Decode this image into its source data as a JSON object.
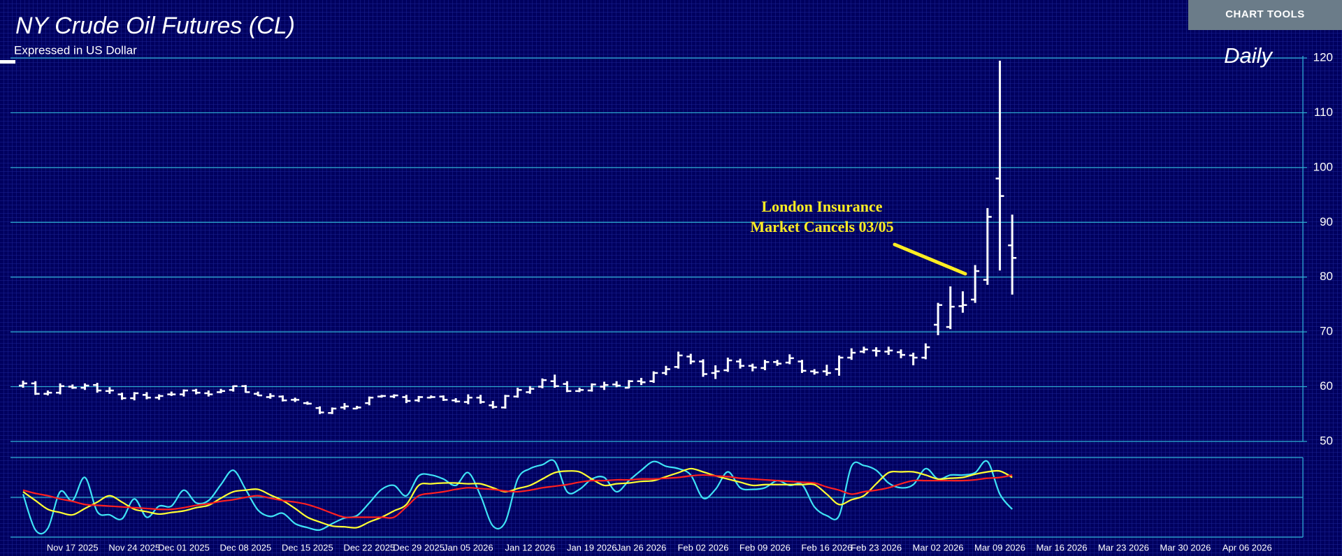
{
  "ui": {
    "chart_tools": "CHART TOOLS"
  },
  "chart_data": [
    {
      "type": "ohlc",
      "title": "NY Crude Oil Futures (CL)",
      "subtitle": "Expressed in US Dollar",
      "period": "Daily",
      "annotations": [
        "London Insurance",
        "Market Cancels 03/05"
      ],
      "color": "#ffffff",
      "grid": true,
      "grid_color": "#2fb3d6",
      "ylim": [
        50,
        120
      ],
      "yticks": [
        50,
        60,
        70,
        80,
        90,
        100,
        110,
        120
      ],
      "categories": [
        null,
        null,
        null,
        null,
        "Nov 17 2025",
        null,
        null,
        null,
        null,
        "Nov 24 2025",
        null,
        null,
        null,
        "Dec 01 2025",
        null,
        null,
        null,
        null,
        "Dec 08 2025",
        null,
        null,
        null,
        null,
        "Dec 15 2025",
        null,
        null,
        null,
        null,
        "Dec 22 2025",
        null,
        null,
        null,
        "Dec 29 2025",
        null,
        null,
        null,
        "Jan 05 2026",
        null,
        null,
        null,
        null,
        "Jan 12 2026",
        null,
        null,
        null,
        null,
        "Jan 19 2026",
        null,
        null,
        null,
        "Jan 26 2026",
        null,
        null,
        null,
        null,
        "Feb 02 2026",
        null,
        null,
        null,
        null,
        "Feb 09 2026",
        null,
        null,
        null,
        null,
        "Feb 16 2026",
        null,
        null,
        null,
        "Feb 23 2026",
        null,
        null,
        null,
        null,
        "Mar 02 2026",
        null,
        null,
        null,
        null,
        "Mar 09 2026",
        null,
        null,
        null,
        null,
        "Mar 16 2026",
        null,
        null,
        null,
        null,
        "Mar 23 2026",
        null,
        null,
        null,
        null,
        "Mar 30 2026",
        null,
        null,
        null,
        null,
        "Apr 06 2026",
        null,
        null,
        null,
        null
      ],
      "open": [
        60.2,
        60.6,
        58.7,
        58.9,
        60.0,
        59.8,
        60.3,
        59.2,
        58.6,
        57.9,
        58.5,
        58.0,
        58.6,
        58.6,
        59.3,
        58.8,
        59.0,
        59.4,
        60.1,
        58.7,
        58.1,
        58.2,
        57.6,
        57.0,
        56.1,
        55.2,
        56.2,
        56.0,
        57.0,
        58.2,
        58.2,
        58.1,
        57.5,
        58.0,
        58.2,
        57.5,
        57.2,
        58.0,
        56.6,
        56.2,
        58.2,
        59.0,
        60.0,
        61.0,
        60.5,
        59.2,
        59.3,
        60.0,
        60.4,
        59.8,
        61.0,
        61.0,
        62.5,
        63.6,
        65.5,
        64.6,
        62.5,
        63.0,
        64.6,
        63.8,
        63.4,
        64.5,
        64.4,
        64.6,
        62.8,
        62.8,
        63.2,
        65.3,
        66.4,
        66.6,
        66.4,
        66.3,
        65.7,
        65.3,
        71.3,
        70.9,
        74.7,
        75.9,
        79.5,
        98.0,
        85.8,
        null,
        null,
        null,
        null,
        null,
        null,
        null,
        null,
        null,
        null,
        null,
        null,
        null,
        null,
        null,
        null,
        null,
        null,
        null,
        null,
        null,
        null,
        null
      ],
      "high": [
        61.1,
        61.0,
        59.3,
        60.6,
        60.4,
        60.6,
        60.7,
        59.9,
        58.9,
        59.0,
        59.0,
        58.6,
        59.1,
        59.5,
        59.6,
        59.3,
        59.6,
        60.2,
        60.3,
        59.1,
        58.8,
        58.4,
        58.0,
        57.3,
        56.4,
        56.2,
        57.0,
        56.5,
        58.2,
        58.5,
        58.6,
        58.5,
        58.3,
        58.4,
        58.4,
        57.9,
        58.6,
        58.5,
        57.4,
        58.5,
        59.8,
        60.1,
        61.5,
        62.2,
        61.0,
        59.8,
        60.6,
        60.9,
        61.0,
        61.2,
        61.6,
        62.8,
        63.8,
        66.4,
        66.0,
        65.0,
        63.9,
        65.3,
        65.1,
        64.2,
        64.9,
        64.9,
        65.9,
        64.9,
        63.2,
        64.0,
        65.7,
        67.0,
        67.3,
        67.2,
        67.3,
        66.8,
        66.2,
        67.9,
        75.3,
        78.3,
        77.4,
        82.2,
        92.6,
        119.5,
        91.4,
        null,
        null,
        null,
        null,
        null,
        null,
        null,
        null,
        null,
        null,
        null,
        null,
        null,
        null,
        null,
        null,
        null,
        null,
        null,
        null,
        null,
        null,
        null
      ],
      "low": [
        59.8,
        58.5,
        58.4,
        58.6,
        59.6,
        59.4,
        58.9,
        58.7,
        57.6,
        57.5,
        57.7,
        57.6,
        58.3,
        58.2,
        58.6,
        58.2,
        58.8,
        59.1,
        58.9,
        58.3,
        57.8,
        57.3,
        57.2,
        56.7,
        55.0,
        55.0,
        55.8,
        55.9,
        56.6,
        58.0,
        57.9,
        57.0,
        57.2,
        57.9,
        57.4,
        57.1,
        56.8,
        56.9,
        56.0,
        56.0,
        58.0,
        58.7,
        59.7,
        59.8,
        59.0,
        59.0,
        59.1,
        59.4,
        59.9,
        59.7,
        60.3,
        60.7,
        62.1,
        63.3,
        64.1,
        61.8,
        61.4,
        62.7,
        63.3,
        62.8,
        63.0,
        63.8,
        64.1,
        62.5,
        62.2,
        62.0,
        62.0,
        64.9,
        66.1,
        65.5,
        65.8,
        65.2,
        63.9,
        65.0,
        69.4,
        70.5,
        73.5,
        75.3,
        78.6,
        81.2,
        76.8,
        null,
        null,
        null,
        null,
        null,
        null,
        null,
        null,
        null,
        null,
        null,
        null,
        null,
        null,
        null,
        null,
        null,
        null,
        null,
        null,
        null,
        null,
        null
      ],
      "close": [
        60.6,
        58.7,
        58.9,
        60.1,
        59.8,
        60.2,
        59.3,
        59.3,
        57.9,
        58.8,
        58.0,
        58.3,
        58.6,
        59.3,
        58.9,
        58.6,
        59.2,
        60.1,
        59.0,
        58.4,
        58.3,
        57.5,
        57.6,
        56.9,
        55.3,
        56.0,
        56.4,
        56.2,
        58.0,
        58.3,
        58.4,
        57.4,
        58.1,
        58.1,
        57.6,
        57.3,
        58.0,
        57.2,
        56.3,
        58.3,
        59.4,
        59.6,
        61.2,
        60.1,
        59.2,
        59.4,
        60.4,
        60.3,
        60.2,
        61.0,
        60.8,
        62.5,
        63.2,
        65.7,
        64.6,
        62.3,
        62.8,
        64.8,
        63.8,
        63.5,
        64.5,
        64.2,
        65.2,
        62.9,
        62.6,
        62.5,
        65.3,
        66.2,
        66.8,
        66.5,
        66.6,
        65.8,
        65.3,
        67.2,
        74.9,
        74.6,
        74.9,
        81.1,
        91.0,
        94.8,
        83.5,
        null,
        null,
        null,
        null,
        null,
        null,
        null,
        null,
        null,
        null,
        null,
        null,
        null,
        null,
        null,
        null,
        null,
        null,
        null,
        null,
        null,
        null,
        null
      ]
    },
    {
      "type": "line",
      "ylim": [
        0,
        100
      ],
      "grid_color": "#2fb3d6",
      "series": [
        {
          "color": "#3fe3f5",
          "values": [
            54,
            9,
            11,
            57,
            46,
            75,
            32,
            28,
            23,
            48,
            25,
            39,
            39,
            59,
            43,
            46,
            66,
            84,
            60,
            34,
            26,
            30,
            17,
            12,
            9,
            17,
            24,
            27,
            43,
            60,
            65,
            52,
            77,
            78,
            73,
            65,
            81,
            52,
            14,
            19,
            73,
            86,
            91,
            95,
            57,
            60,
            73,
            75,
            57,
            71,
            84,
            95,
            89,
            86,
            78,
            49,
            60,
            82,
            62,
            60,
            62,
            71,
            65,
            66,
            38,
            27,
            27,
            89,
            90,
            84,
            68,
            62,
            66,
            86,
            73,
            78,
            78,
            81,
            95,
            54,
            35,
            null,
            null,
            null,
            null,
            null,
            null,
            null,
            null,
            null,
            null,
            null,
            null,
            null,
            null,
            null,
            null,
            null,
            null,
            null,
            null,
            null,
            null,
            null
          ]
        },
        {
          "color": "#ffff33",
          "values": [
            57,
            46,
            35,
            31,
            28,
            36,
            44,
            52,
            44,
            35,
            32,
            29,
            31,
            33,
            37,
            40,
            49,
            57,
            59,
            60,
            53,
            46,
            36,
            25,
            19,
            14,
            13,
            12,
            19,
            25,
            33,
            41,
            65,
            67,
            68,
            68,
            67,
            67,
            62,
            57,
            61,
            65,
            73,
            81,
            83,
            82,
            73,
            65,
            67,
            68,
            70,
            71,
            76,
            81,
            86,
            82,
            77,
            73,
            69,
            65,
            66,
            66,
            66,
            66,
            66,
            54,
            41,
            47,
            52,
            67,
            81,
            82,
            82,
            78,
            73,
            74,
            75,
            79,
            82,
            83,
            75,
            null,
            null,
            null,
            null,
            null,
            null,
            null,
            null,
            null,
            null,
            null,
            null,
            null,
            null,
            null,
            null,
            null,
            null,
            null,
            null,
            null,
            null,
            null
          ]
        },
        {
          "color": "#ff2020",
          "values": [
            59,
            55,
            52,
            48,
            45,
            41,
            40,
            39,
            38,
            37,
            36,
            35,
            35,
            37,
            40,
            42,
            45,
            47,
            50,
            52,
            49,
            46,
            44,
            41,
            36,
            30,
            25,
            25,
            25,
            25,
            25,
            38,
            52,
            55,
            57,
            60,
            62,
            61,
            60,
            58,
            57,
            59,
            62,
            64,
            66,
            69,
            71,
            71,
            72,
            72,
            73,
            73,
            74,
            75,
            77,
            78,
            77,
            76,
            74,
            73,
            72,
            71,
            70,
            69,
            68,
            63,
            59,
            54,
            57,
            59,
            62,
            67,
            71,
            71,
            71,
            71,
            71,
            72,
            74,
            75,
            78,
            null,
            null,
            null,
            null,
            null,
            null,
            null,
            null,
            null,
            null,
            null,
            null,
            null,
            null,
            null,
            null,
            null,
            null,
            null,
            null,
            null,
            null,
            null
          ]
        }
      ]
    }
  ]
}
